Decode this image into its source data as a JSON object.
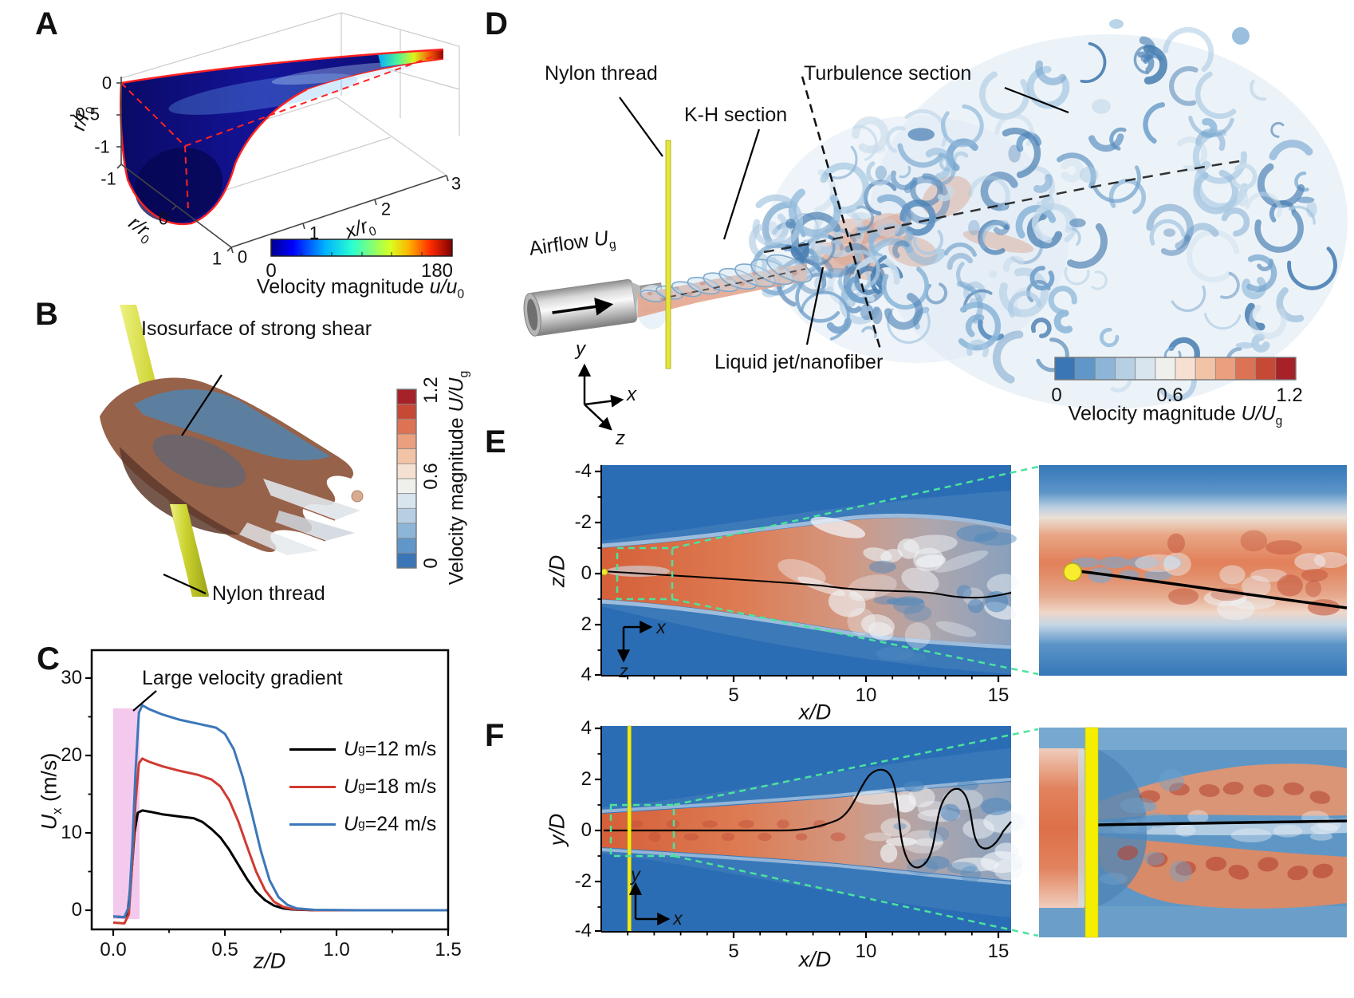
{
  "panel_a": {
    "tag": "A",
    "vert_axis": {
      "label_var": "r/r",
      "label_sub": "0",
      "ticks": [
        "0",
        "-0.5",
        "-1"
      ]
    },
    "left_axis": {
      "label_var": "r/r",
      "label_sub": "0",
      "ticks": [
        "-1",
        "0",
        "1"
      ]
    },
    "depth_axis": {
      "label_var": "x/r",
      "label_sub": "0",
      "ticks": [
        "0",
        "1",
        "2",
        "3"
      ]
    },
    "colorbar": {
      "min": "0",
      "max": "180",
      "label_pre": "Velocity magnitude ",
      "label_var": "u/u",
      "label_sub": "0"
    }
  },
  "panel_b": {
    "tag": "B",
    "isosurface_label": "Isosurface of strong shear",
    "thread_label": "Nylon thread",
    "colorbar": {
      "ticks": [
        "0",
        "0.6",
        "1.2"
      ],
      "label_pre": "Velocity magnitude ",
      "label_var": "U/U",
      "label_sub": "g"
    }
  },
  "panel_c": {
    "tag": "C",
    "annotation": "Large velocity gradient",
    "y_axis": {
      "label_var": "U",
      "label_sub": "x",
      "label_unit": " (m/s)",
      "ticks": [
        "30",
        "20",
        "10",
        "0"
      ]
    },
    "x_axis": {
      "label": "z/D",
      "ticks": [
        "0.0",
        "0.5",
        "1.0",
        "1.5"
      ]
    },
    "legend": [
      {
        "var": "U",
        "sub": "g",
        "value": "=12 m/s",
        "color": "#000000"
      },
      {
        "var": "U",
        "sub": "g",
        "value": "=18 m/s",
        "color": "#cf3b32"
      },
      {
        "var": "U",
        "sub": "g",
        "value": "=24 m/s",
        "color": "#3c77b9"
      }
    ]
  },
  "panel_d": {
    "tag": "D",
    "nylon_label": "Nylon thread",
    "kh_label": "K-H section",
    "turbulence_label": "Turbulence section",
    "airflow": {
      "pre": "Airflow ",
      "var": "U",
      "sub": "g"
    },
    "jet_label": "Liquid jet/nanofiber",
    "triad": {
      "x": "x",
      "y": "y",
      "z": "z"
    },
    "colorbar": {
      "ticks": [
        "0",
        "0.6",
        "1.2"
      ],
      "label_pre": "Velocity magnitude ",
      "label_var": "U/U",
      "label_sub": "g"
    }
  },
  "panel_e": {
    "tag": "E",
    "y_axis": {
      "label": "z/D",
      "ticks": [
        "-4",
        "-2",
        "0",
        "2",
        "4"
      ]
    },
    "x_axis": {
      "label": "x/D",
      "ticks": [
        "5",
        "10",
        "15"
      ]
    },
    "mini_axes": {
      "h": "x",
      "v": "z"
    }
  },
  "panel_f": {
    "tag": "F",
    "y_axis": {
      "label": "y/D",
      "ticks": [
        "4",
        "2",
        "0",
        "-2",
        "-4"
      ]
    },
    "x_axis": {
      "label": "x/D",
      "ticks": [
        "5",
        "10",
        "15"
      ]
    },
    "mini_axes": {
      "h": "x",
      "v": "y"
    }
  },
  "colors": {
    "thread_yellow": "#e4e43a",
    "inset_thread_yellow": "#f6ee00",
    "zoom_dash_green": "#4be39e",
    "highlight_pink": "#f3c9ee",
    "field_blue": "#2b6db4",
    "jet_red": "#dd7c54",
    "red_outline": "#ff2222"
  },
  "chart_data": [
    {
      "id": "panel_a_colorbar",
      "type": "colorbar",
      "colormap": "jet",
      "range": [
        0,
        180
      ],
      "ticks": [
        0,
        180
      ],
      "label": "Velocity magnitude u/u0"
    },
    {
      "id": "panel_b_colorbar",
      "type": "colorbar",
      "colormap": "blue-white-red",
      "range": [
        0,
        1.2
      ],
      "ticks": [
        0,
        0.6,
        1.2
      ],
      "label": "Velocity magnitude U/Ug",
      "orientation": "vertical"
    },
    {
      "id": "panel_c_profiles",
      "type": "line",
      "xlabel": "z/D",
      "ylabel": "Ux (m/s)",
      "xlim": [
        -0.1,
        1.5
      ],
      "ylim": [
        -2.7,
        33.6
      ],
      "xticks": [
        0.0,
        0.5,
        1.0,
        1.5
      ],
      "yticks": [
        0,
        10,
        20,
        30
      ],
      "annotation": "Large velocity gradient",
      "highlight_region": {
        "x": [
          0.0,
          0.12
        ],
        "color": "#f3c9ee"
      },
      "legend_position": "right",
      "series": [
        {
          "name": "Ug=12 m/s",
          "color": "#000000",
          "points": [
            [
              0,
              -0.8
            ],
            [
              0.05,
              -0.9
            ],
            [
              0.065,
              -0.3
            ],
            [
              0.08,
              4
            ],
            [
              0.095,
              10
            ],
            [
              0.11,
              12.6
            ],
            [
              0.13,
              12.9
            ],
            [
              0.17,
              12.7
            ],
            [
              0.22,
              12.4
            ],
            [
              0.3,
              12.1
            ],
            [
              0.36,
              11.9
            ],
            [
              0.4,
              11.4
            ],
            [
              0.44,
              10.5
            ],
            [
              0.48,
              9.4
            ],
            [
              0.52,
              7.8
            ],
            [
              0.56,
              5.9
            ],
            [
              0.6,
              4.0
            ],
            [
              0.64,
              2.4
            ],
            [
              0.68,
              1.3
            ],
            [
              0.72,
              0.6
            ],
            [
              0.76,
              0.25
            ],
            [
              0.8,
              0.1
            ],
            [
              0.9,
              0
            ],
            [
              1.1,
              0
            ],
            [
              1.5,
              0
            ]
          ]
        },
        {
          "name": "Ug=18 m/s",
          "color": "#cf3b32",
          "points": [
            [
              0,
              -1.6
            ],
            [
              0.05,
              -1.7
            ],
            [
              0.07,
              -0.5
            ],
            [
              0.085,
              6
            ],
            [
              0.1,
              14
            ],
            [
              0.115,
              19.0
            ],
            [
              0.13,
              19.6
            ],
            [
              0.16,
              19.2
            ],
            [
              0.22,
              18.6
            ],
            [
              0.3,
              18.0
            ],
            [
              0.38,
              17.5
            ],
            [
              0.44,
              16.9
            ],
            [
              0.48,
              16.0
            ],
            [
              0.52,
              14.2
            ],
            [
              0.56,
              11.5
            ],
            [
              0.6,
              8.2
            ],
            [
              0.64,
              5.0
            ],
            [
              0.68,
              2.6
            ],
            [
              0.72,
              1.1
            ],
            [
              0.76,
              0.45
            ],
            [
              0.8,
              0.15
            ],
            [
              0.9,
              0
            ],
            [
              1.1,
              0
            ],
            [
              1.5,
              0
            ]
          ]
        },
        {
          "name": "Ug=24 m/s",
          "color": "#3c77b9",
          "points": [
            [
              0,
              -0.8
            ],
            [
              0.05,
              -0.9
            ],
            [
              0.07,
              0.5
            ],
            [
              0.085,
              8
            ],
            [
              0.1,
              18
            ],
            [
              0.115,
              25.5
            ],
            [
              0.13,
              26.5
            ],
            [
              0.16,
              26.0
            ],
            [
              0.22,
              25.3
            ],
            [
              0.3,
              24.6
            ],
            [
              0.38,
              24.1
            ],
            [
              0.46,
              23.6
            ],
            [
              0.5,
              22.8
            ],
            [
              0.54,
              20.8
            ],
            [
              0.58,
              17.2
            ],
            [
              0.62,
              12.6
            ],
            [
              0.66,
              7.8
            ],
            [
              0.7,
              3.9
            ],
            [
              0.74,
              1.7
            ],
            [
              0.78,
              0.7
            ],
            [
              0.82,
              0.25
            ],
            [
              0.9,
              0.05
            ],
            [
              1.1,
              0
            ],
            [
              1.5,
              0
            ]
          ]
        }
      ]
    },
    {
      "id": "panel_d_colorbar",
      "type": "colorbar",
      "colormap": "blue-white-red",
      "range": [
        0,
        1.2
      ],
      "ticks": [
        0,
        0.6,
        1.2
      ],
      "label": "Velocity magnitude U/Ug",
      "orientation": "horizontal"
    },
    {
      "id": "panel_e_field",
      "type": "heatmap",
      "xlabel": "x/D",
      "ylabel": "z/D",
      "xlim": [
        0,
        15.5
      ],
      "ylim": [
        -4,
        4
      ],
      "xticks": [
        5,
        10,
        15
      ],
      "yticks": [
        -4,
        -2,
        0,
        2,
        4
      ],
      "description": "x-z slice of velocity magnitude: red jet core on blue background, black nanofiber path, dashed zoom box linked to magnified inset with yellow thread cross-section dot"
    },
    {
      "id": "panel_f_field",
      "type": "heatmap",
      "xlabel": "x/D",
      "ylabel": "y/D",
      "xlim": [
        0,
        15.5
      ],
      "ylim": [
        -4,
        4
      ],
      "xticks": [
        5,
        10,
        15
      ],
      "yticks": [
        4,
        2,
        0,
        -2,
        -4
      ],
      "description": "x-y slice of velocity magnitude: vertical yellow nylon thread near x/D=1, wavy black nanofiber line, dashed zoom box linked to magnified inset"
    }
  ]
}
